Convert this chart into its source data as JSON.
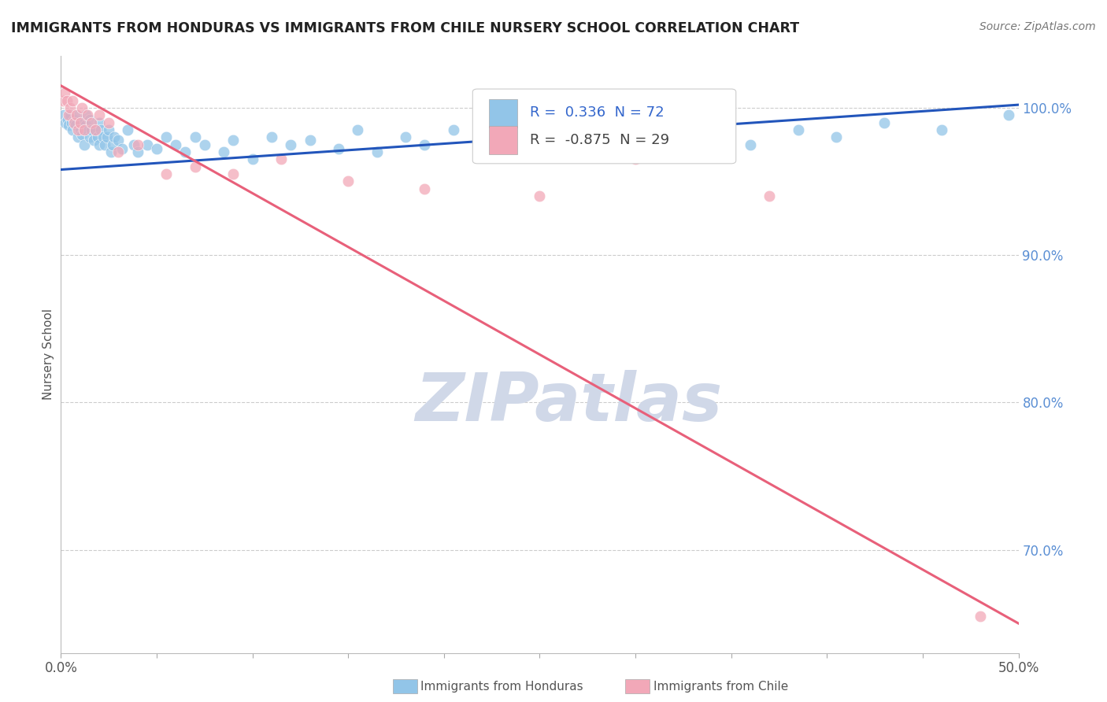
{
  "title": "IMMIGRANTS FROM HONDURAS VS IMMIGRANTS FROM CHILE NURSERY SCHOOL CORRELATION CHART",
  "source": "Source: ZipAtlas.com",
  "ylabel": "Nursery School",
  "xlim": [
    0.0,
    50.0
  ],
  "ylim": [
    63.0,
    103.5
  ],
  "yticks": [
    70.0,
    80.0,
    90.0,
    100.0
  ],
  "xtick_count": 11,
  "legend_r_honduras": "0.336",
  "legend_n_honduras": "72",
  "legend_r_chile": "-0.875",
  "legend_n_chile": "29",
  "honduras_color": "#92C5E8",
  "chile_color": "#F2A8B8",
  "trend_honduras_color": "#2255BB",
  "trend_chile_color": "#E8607A",
  "watermark": "ZIPatlas",
  "watermark_color": "#D0D8E8",
  "honduras_x": [
    0.15,
    0.25,
    0.35,
    0.4,
    0.5,
    0.55,
    0.6,
    0.7,
    0.75,
    0.8,
    0.9,
    1.0,
    1.0,
    1.1,
    1.1,
    1.2,
    1.2,
    1.3,
    1.3,
    1.4,
    1.5,
    1.5,
    1.6,
    1.7,
    1.8,
    1.9,
    2.0,
    2.0,
    2.1,
    2.2,
    2.3,
    2.4,
    2.5,
    2.6,
    2.7,
    2.8,
    3.0,
    3.2,
    3.5,
    3.8,
    4.0,
    4.5,
    5.0,
    5.5,
    6.0,
    6.5,
    7.0,
    7.5,
    8.5,
    9.0,
    10.0,
    11.0,
    12.0,
    13.0,
    14.5,
    15.5,
    16.5,
    18.0,
    19.0,
    20.5,
    22.0,
    24.0,
    26.0,
    28.5,
    31.0,
    34.0,
    36.0,
    38.5,
    40.5,
    43.0,
    46.0,
    49.5
  ],
  "honduras_y": [
    99.5,
    99.0,
    99.2,
    98.8,
    99.5,
    99.0,
    98.5,
    99.2,
    98.8,
    99.5,
    98.0,
    98.5,
    99.0,
    98.2,
    99.0,
    98.5,
    97.5,
    98.8,
    99.5,
    98.5,
    98.0,
    99.2,
    98.5,
    97.8,
    98.5,
    98.0,
    97.5,
    99.0,
    98.5,
    98.0,
    97.5,
    98.0,
    98.5,
    97.0,
    97.5,
    98.0,
    97.8,
    97.2,
    98.5,
    97.5,
    97.0,
    97.5,
    97.2,
    98.0,
    97.5,
    97.0,
    98.0,
    97.5,
    97.0,
    97.8,
    96.5,
    98.0,
    97.5,
    97.8,
    97.2,
    98.5,
    97.0,
    98.0,
    97.5,
    98.5,
    97.5,
    98.0,
    97.5,
    98.0,
    98.5,
    98.0,
    97.5,
    98.5,
    98.0,
    99.0,
    98.5,
    99.5
  ],
  "chile_x": [
    0.1,
    0.2,
    0.3,
    0.4,
    0.5,
    0.6,
    0.7,
    0.8,
    0.9,
    1.0,
    1.1,
    1.2,
    1.4,
    1.6,
    1.8,
    2.0,
    2.5,
    3.0,
    4.0,
    5.5,
    7.0,
    9.0,
    11.5,
    15.0,
    19.0,
    25.0,
    30.0,
    37.0,
    48.0
  ],
  "chile_y": [
    100.5,
    101.0,
    100.5,
    99.5,
    100.0,
    100.5,
    99.0,
    99.5,
    98.5,
    99.0,
    100.0,
    98.5,
    99.5,
    99.0,
    98.5,
    99.5,
    99.0,
    97.0,
    97.5,
    95.5,
    96.0,
    95.5,
    96.5,
    95.0,
    94.5,
    94.0,
    96.5,
    94.0,
    65.5
  ],
  "trend_h_x0": 0.0,
  "trend_h_y0": 95.8,
  "trend_h_x1": 50.0,
  "trend_h_y1": 100.2,
  "trend_c_x0": 0.0,
  "trend_c_y0": 101.5,
  "trend_c_x1": 50.0,
  "trend_c_y1": 65.0
}
